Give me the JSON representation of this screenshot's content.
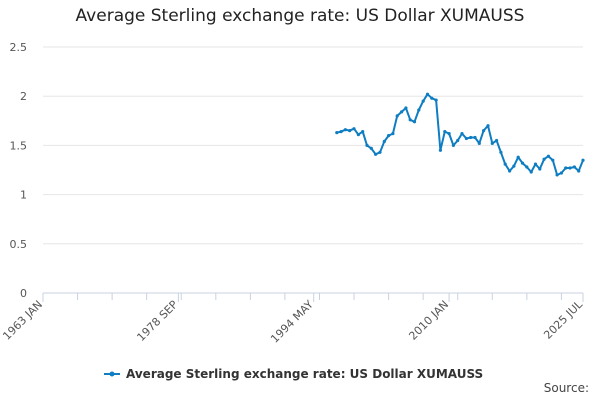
{
  "title": "Average Sterling exchange rate: US Dollar XUMAUSS",
  "source": "Source:",
  "chart_data": {
    "type": "line",
    "title": "Average Sterling exchange rate: US Dollar XUMAUSS",
    "xlabel": "",
    "ylabel": "",
    "ylim": [
      0,
      2.5
    ],
    "yticks": [
      "0",
      "0.5",
      "1",
      "1.5",
      "2",
      "2.5"
    ],
    "xlim": [
      "1963-01",
      "2025-07"
    ],
    "xticks": [
      {
        "label": "1963 JAN",
        "date": "1963-01"
      },
      {
        "label": "1978 SEP",
        "date": "1978-09"
      },
      {
        "label": "1994 MAY",
        "date": "1994-05"
      },
      {
        "label": "2010 JAN",
        "date": "2010-01"
      },
      {
        "label": "2025 JUL",
        "date": "2025-07"
      }
    ],
    "grid": "horizontal",
    "legend_position": "bottom",
    "series": [
      {
        "name": "Average Sterling exchange rate: US Dollar XUMAUSS",
        "color": "#0f7dc2",
        "x": [
          "1997-01",
          "1997-07",
          "1998-01",
          "1998-07",
          "1999-01",
          "1999-07",
          "2000-01",
          "2000-07",
          "2001-01",
          "2001-07",
          "2002-01",
          "2002-07",
          "2003-01",
          "2003-07",
          "2004-01",
          "2004-07",
          "2005-01",
          "2005-07",
          "2006-01",
          "2006-07",
          "2007-01",
          "2007-07",
          "2008-01",
          "2008-07",
          "2009-01",
          "2009-07",
          "2010-01",
          "2010-07",
          "2011-01",
          "2011-07",
          "2012-01",
          "2012-07",
          "2013-01",
          "2013-07",
          "2014-01",
          "2014-07",
          "2015-01",
          "2015-07",
          "2016-01",
          "2016-07",
          "2017-01",
          "2017-07",
          "2018-01",
          "2018-07",
          "2019-01",
          "2019-07",
          "2020-01",
          "2020-07",
          "2021-01",
          "2021-07",
          "2022-01",
          "2022-07",
          "2023-01",
          "2023-07",
          "2024-01",
          "2024-07",
          "2025-01",
          "2025-07"
        ],
        "y": [
          1.63,
          1.64,
          1.66,
          1.65,
          1.67,
          1.61,
          1.64,
          1.5,
          1.47,
          1.41,
          1.43,
          1.54,
          1.6,
          1.62,
          1.8,
          1.84,
          1.88,
          1.76,
          1.74,
          1.86,
          1.95,
          2.02,
          1.98,
          1.96,
          1.45,
          1.64,
          1.62,
          1.5,
          1.55,
          1.62,
          1.57,
          1.58,
          1.58,
          1.52,
          1.65,
          1.7,
          1.52,
          1.55,
          1.43,
          1.31,
          1.24,
          1.29,
          1.38,
          1.32,
          1.28,
          1.23,
          1.31,
          1.26,
          1.36,
          1.39,
          1.35,
          1.2,
          1.22,
          1.27,
          1.27,
          1.28,
          1.24,
          1.35
        ]
      }
    ]
  }
}
